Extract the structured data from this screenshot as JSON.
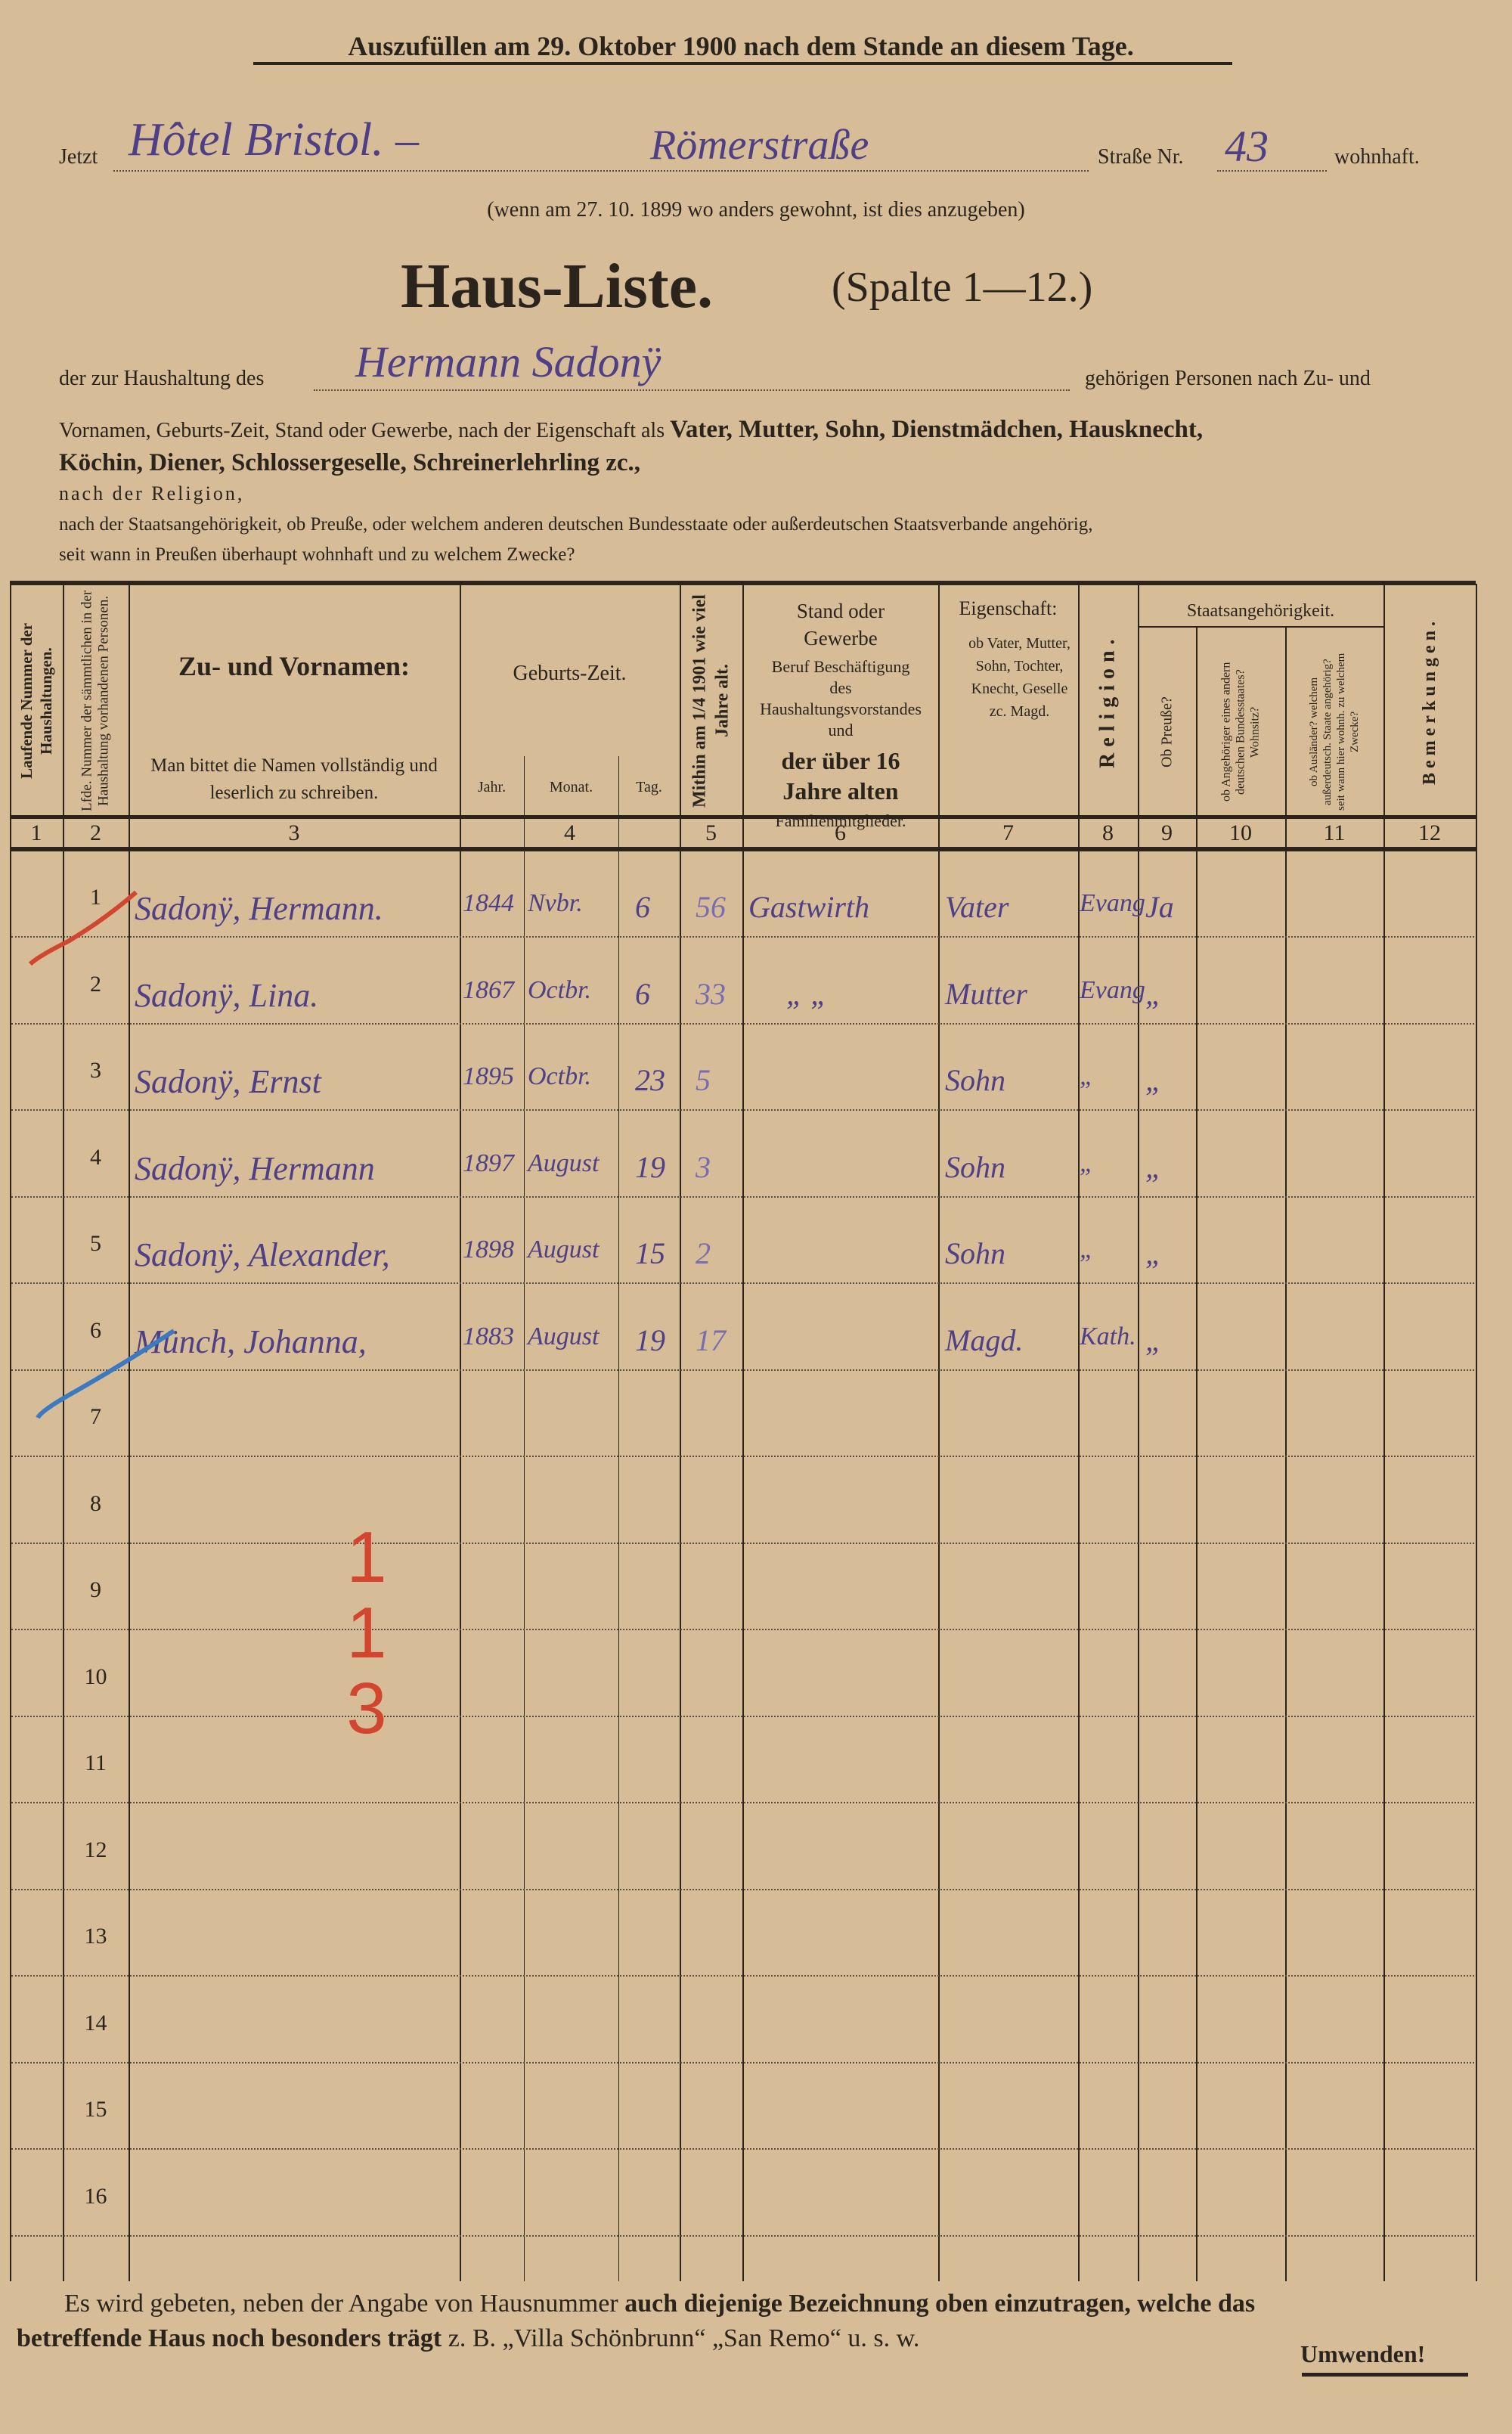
{
  "header": {
    "top_notice": "Auszufüllen am 29. Oktober 1900 nach dem Stande an diesem Tage.",
    "address_prefix": "Jetzt",
    "address_place": "Hôtel Bristol. –",
    "address_street": "Römerstraße",
    "street_label": "Straße Nr.",
    "house_number": "43",
    "address_suffix": "wohnhaft.",
    "previous_address_note": "(wenn am 27. 10. 1899 wo anders gewohnt, ist dies anzugeben)",
    "title": "Haus-Liste.",
    "title_columns": "(Spalte 1—12.)",
    "household_prefix": "der zur Haushaltung des",
    "household_head": "Hermann Sadonÿ",
    "household_suffix": "gehörigen Personen nach Zu- und",
    "instructions_line1_regular": "Vornamen, Geburts-Zeit, Stand oder Gewerbe, nach der Eigenschaft als",
    "instructions_line1_bold": "Vater, Mutter, Sohn, Dienstmädchen, Hausknecht,",
    "instructions_line2_bold": "Köchin, Diener, Schlossergeselle, Schreinerlehrling zc.,",
    "instructions_line3": "nach der Religion,",
    "instructions_line4": "nach der Staatsangehörigkeit, ob Preuße, oder welchem anderen deutschen Bundesstaate oder außerdeutschen Staatsverbande angehörig,",
    "instructions_line5": "seit wann in Preußen überhaupt wohnhaft und zu welchem Zwecke?"
  },
  "table": {
    "headers": {
      "c1": "Laufende Nummer der Haushaltungen.",
      "c2": "Lfde. Nummer der sämmtlichen in der Haushaltung vorhandenen Personen.",
      "c3_title": "Zu- und Vornamen:",
      "c3_note": "Man bittet die Namen vollständig und leserlich zu schreiben.",
      "c4_title": "Geburts-Zeit.",
      "c4_year": "Jahr.",
      "c4_month": "Monat.",
      "c4_day": "Tag.",
      "c5": "Mithin am 1/4 1901 wie viel Jahre alt.",
      "c6_title": "Stand oder Gewerbe",
      "c6_note": "Beruf Beschäftigung des Haushaltungsvorstandes und",
      "c6_bold": "der über 16 Jahre alten",
      "c6_footer": "Familienmitglieder.",
      "c7_title": "Eigenschaft:",
      "c7_note": "ob Vater, Mutter, Sohn, Tochter, Knecht, Geselle zc. Magd.",
      "c8": "Religion.",
      "c9_11_title": "Staatsangehörigkeit.",
      "c9": "Ob Preuße?",
      "c10": "ob Angehöriger eines andern deutschen Bundesstaates? Wohnsitz?",
      "c11": "ob Ausländer? welchem außerdeutsch. Staate angehörig? seit wann hier wohnh. zu welchem Zwecke?",
      "c12": "Bemerkungen."
    },
    "column_numbers": [
      "1",
      "2",
      "3",
      "4",
      "5",
      "6",
      "7",
      "8",
      "9",
      "10",
      "11",
      "12"
    ],
    "row_numbers": [
      "1",
      "2",
      "3",
      "4",
      "5",
      "6",
      "7",
      "8",
      "9",
      "10",
      "11",
      "12",
      "13",
      "14",
      "15",
      "16"
    ],
    "entries": [
      {
        "name": "Sadonÿ, Hermann.",
        "year": "1844",
        "month": "Nvbr.",
        "day": "6",
        "age": "56",
        "occupation": "Gastwirth",
        "relation": "Vater",
        "religion": "Evang",
        "prussian": "Ja"
      },
      {
        "name": "Sadonÿ, Lina.",
        "year": "1867",
        "month": "Octbr.",
        "day": "6",
        "age": "33",
        "occupation": "„ „",
        "relation": "Mutter",
        "religion": "Evang",
        "prussian": "„"
      },
      {
        "name": "Sadonÿ, Ernst",
        "year": "1895",
        "month": "Octbr.",
        "day": "23",
        "age": "5",
        "occupation": "",
        "relation": "Sohn",
        "religion": "„",
        "prussian": "„"
      },
      {
        "name": "Sadonÿ, Hermann",
        "year": "1897",
        "month": "August",
        "day": "19",
        "age": "3",
        "occupation": "",
        "relation": "Sohn",
        "religion": "„",
        "prussian": "„"
      },
      {
        "name": "Sadonÿ, Alexander,",
        "year": "1898",
        "month": "August",
        "day": "15",
        "age": "2",
        "occupation": "",
        "relation": "Sohn",
        "religion": "„",
        "prussian": "„"
      },
      {
        "name": "Münch, Johanna,",
        "year": "1883",
        "month": "August",
        "day": "19",
        "age": "17",
        "occupation": "",
        "relation": "Magd.",
        "religion": "Kath.",
        "prussian": "„"
      }
    ],
    "tally_marks": [
      "1",
      "1",
      "3"
    ],
    "colors": {
      "ink": "#2b241d",
      "handwriting": "#4f3f86",
      "red_pencil": "#d2452f",
      "blue_pencil": "#3b79c0",
      "paper": "#d6bd98"
    }
  },
  "footer": {
    "note_regular1": "Es wird gebeten, neben der Angabe von Hausnummer",
    "note_bold1": "auch diejenige Bezeichnung oben einzutragen, welche das",
    "note_bold2": "betreffende Haus noch besonders trägt",
    "note_regular2": "z. B. „Villa Schönbrunn“ „San Remo“ u. s. w.",
    "turn_over": "Umwenden!"
  }
}
